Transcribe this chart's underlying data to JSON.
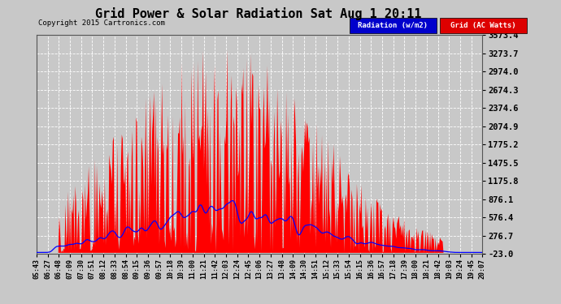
{
  "title": "Grid Power & Solar Radiation Sat Aug 1 20:11",
  "copyright": "Copyright 2015 Cartronics.com",
  "background_color": "#c8c8c8",
  "plot_bg_color": "#c8c8c8",
  "yticks": [
    3573.4,
    3273.7,
    2974.0,
    2674.3,
    2374.6,
    2074.9,
    1775.2,
    1475.5,
    1175.8,
    876.1,
    576.4,
    276.7,
    -23.0
  ],
  "ymin": -23.0,
  "ymax": 3573.4,
  "legend_radiation_label": "Radiation (w/m2)",
  "legend_grid_label": "Grid (AC Watts)",
  "radiation_color": "#0000ff",
  "grid_fill_color": "#ff0000",
  "xtick_labels": [
    "05:43",
    "06:27",
    "06:48",
    "07:09",
    "07:30",
    "07:51",
    "08:12",
    "08:33",
    "08:54",
    "09:15",
    "09:36",
    "09:57",
    "10:18",
    "10:39",
    "11:00",
    "11:21",
    "11:42",
    "12:03",
    "12:24",
    "12:45",
    "13:06",
    "13:27",
    "13:48",
    "14:09",
    "14:30",
    "14:51",
    "15:12",
    "15:33",
    "15:54",
    "16:15",
    "16:36",
    "16:57",
    "17:18",
    "17:39",
    "18:00",
    "18:21",
    "18:42",
    "19:03",
    "19:24",
    "19:45",
    "20:07"
  ],
  "n_pts": 500
}
